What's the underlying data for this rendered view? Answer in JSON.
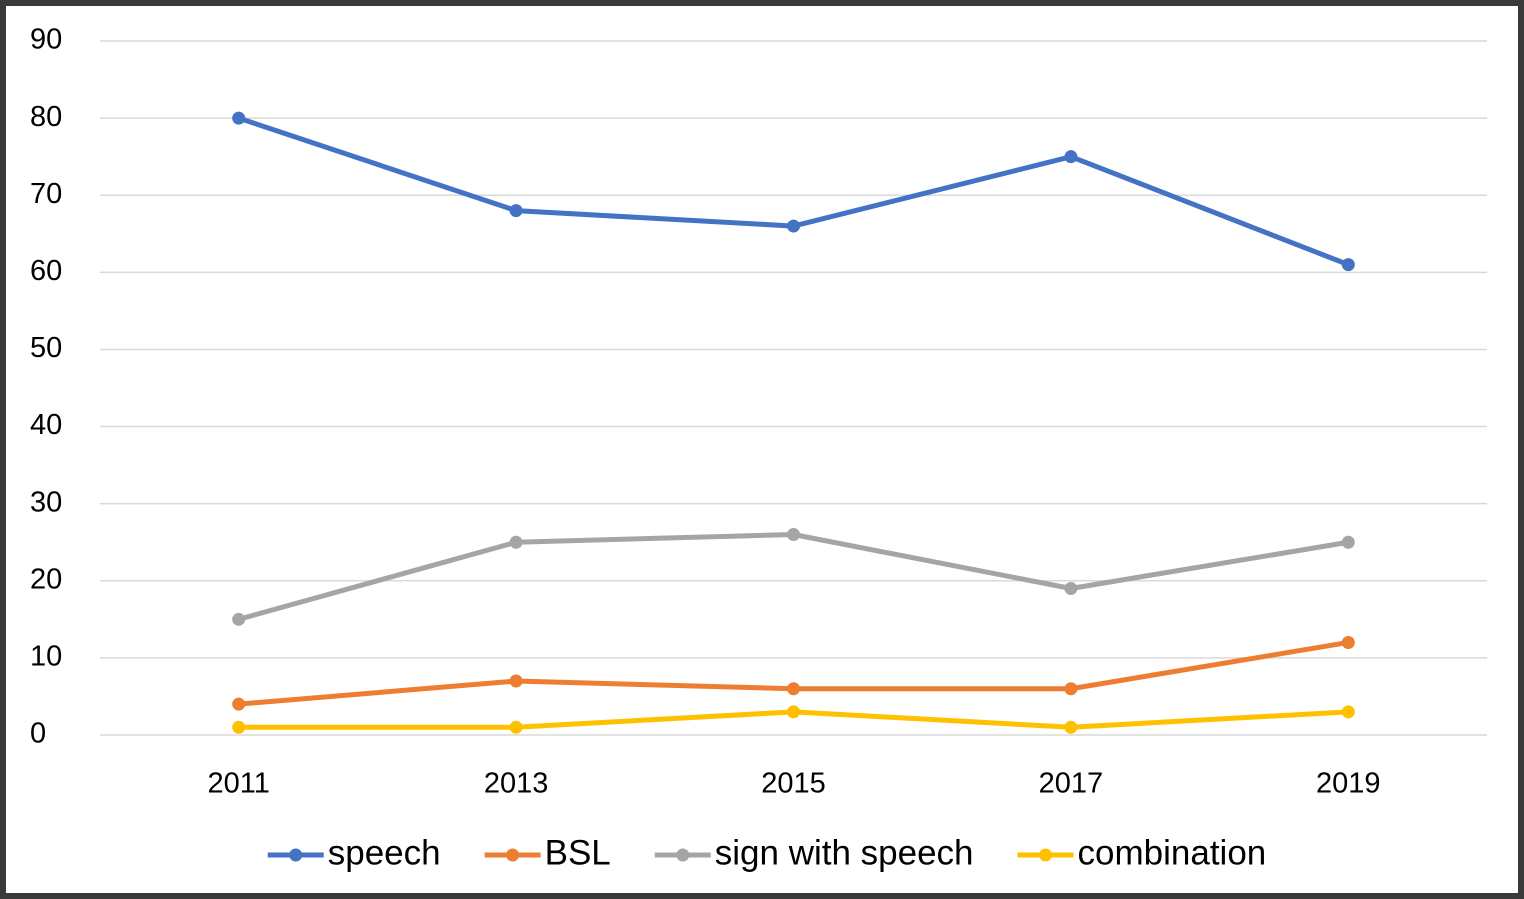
{
  "chart_data": {
    "type": "line",
    "categories": [
      "2011",
      "2013",
      "2015",
      "2017",
      "2019"
    ],
    "series": [
      {
        "name": "speech",
        "color": "#4472c4",
        "values": [
          80,
          68,
          66,
          75,
          61
        ]
      },
      {
        "name": "BSL",
        "color": "#ed7d31",
        "values": [
          4,
          7,
          6,
          6,
          12
        ]
      },
      {
        "name": "sign with speech",
        "color": "#a5a5a5",
        "values": [
          15,
          25,
          26,
          19,
          25
        ]
      },
      {
        "name": "combination",
        "color": "#ffc000",
        "values": [
          1,
          1,
          3,
          1,
          3
        ]
      }
    ],
    "ylim": [
      0,
      90
    ],
    "yticks": [
      0,
      10,
      20,
      30,
      40,
      50,
      60,
      70,
      80,
      90
    ],
    "grid": true,
    "legend": "bottom"
  }
}
